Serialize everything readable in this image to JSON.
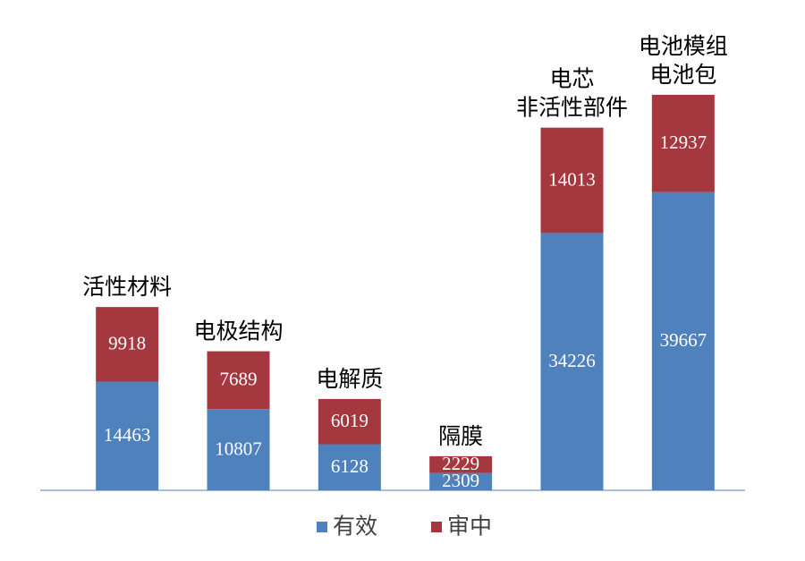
{
  "chart_data": {
    "type": "bar",
    "stacked": true,
    "categories": [
      [
        "活性材料"
      ],
      [
        "电极结构"
      ],
      [
        "电解质"
      ],
      [
        "隔膜"
      ],
      [
        "电芯",
        "非活性部件"
      ],
      [
        "电池模组",
        "电池包"
      ]
    ],
    "series": [
      {
        "name": "有效",
        "color": "#4f81bd",
        "values": [
          14463,
          10807,
          6128,
          2309,
          34226,
          39667
        ]
      },
      {
        "name": "审中",
        "color": "#a5383f",
        "values": [
          9918,
          7689,
          6019,
          2229,
          14013,
          12937
        ]
      }
    ],
    "legend": "bottom"
  }
}
